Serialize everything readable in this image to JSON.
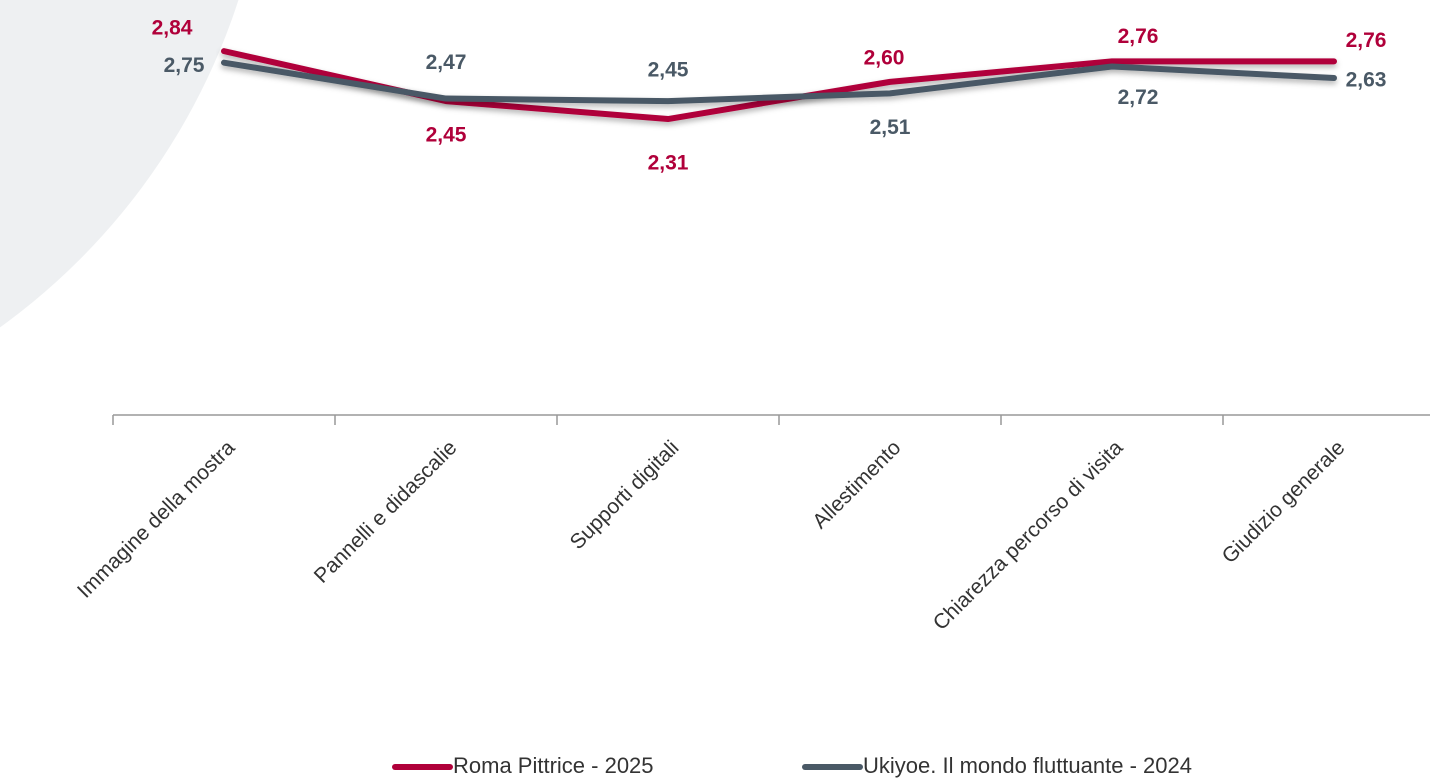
{
  "chart_data": {
    "type": "line",
    "categories": [
      "Immagine della mostra",
      "Pannelli e didascalie",
      "Supporti digitali",
      "Allestimento",
      "Chiarezza percorso di visita",
      "Giudizio generale"
    ],
    "series": [
      {
        "name": "Roma Pittrice - 2025",
        "color": "#b0003a",
        "values": [
          2.84,
          2.45,
          2.31,
          2.6,
          2.76,
          2.76
        ],
        "value_labels": [
          "2,84",
          "2,45",
          "2,31",
          "2,60",
          "2,76",
          "2,76"
        ]
      },
      {
        "name": "Ukiyoe. Il mondo fluttuante - 2024",
        "color": "#4a5966",
        "values": [
          2.75,
          2.47,
          2.45,
          2.51,
          2.72,
          2.63
        ],
        "value_labels": [
          "2,75",
          "2,47",
          "2,45",
          "2,51",
          "2,72",
          "2,63"
        ]
      }
    ],
    "ylim": [
      0,
      3.2
    ],
    "legend": "bottom"
  }
}
